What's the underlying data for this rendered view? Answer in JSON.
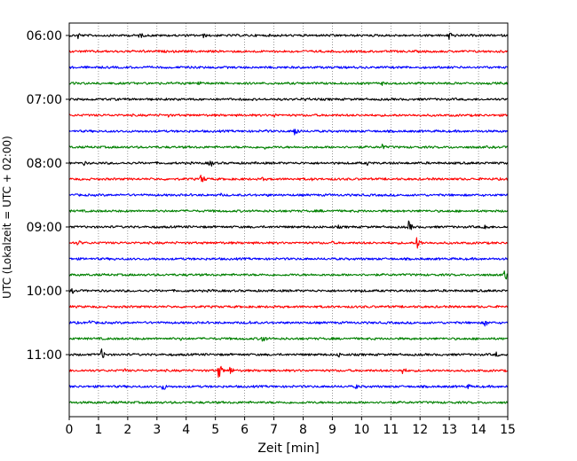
{
  "chart_data": {
    "type": "line",
    "subtype": "helicorder-seismogram",
    "xlabel": "Zeit  [min]",
    "ylabel": "UTC (Lokalzeit = UTC + 02:00)",
    "xlim": [
      0,
      15
    ],
    "x_ticks": [
      "0",
      "1",
      "2",
      "3",
      "4",
      "5",
      "6",
      "7",
      "8",
      "9",
      "10",
      "11",
      "12",
      "13",
      "14",
      "15"
    ],
    "y_ticks": [
      "06:00",
      "07:00",
      "08:00",
      "09:00",
      "10:00",
      "11:00"
    ],
    "grid": "vertical-dotted",
    "trace_colors": [
      "#000000",
      "#ff0000",
      "#0000ff",
      "#008000"
    ],
    "trace_interval_minutes": 15,
    "traces": [
      {
        "start": "06:00",
        "events": [
          [
            0.3,
            0.6
          ],
          [
            2.4,
            0.6
          ],
          [
            4.6,
            0.4
          ],
          [
            9.1,
            0.35
          ],
          [
            13.0,
            0.95
          ]
        ]
      },
      {
        "start": "06:15",
        "events": [
          [
            2.5,
            0.3
          ],
          [
            7.5,
            0.3
          ]
        ]
      },
      {
        "start": "06:30",
        "events": [
          [
            4.3,
            0.5
          ],
          [
            11.5,
            0.25
          ]
        ]
      },
      {
        "start": "06:45",
        "events": [
          [
            4.4,
            0.55
          ],
          [
            10.7,
            0.35
          ]
        ]
      },
      {
        "start": "07:00",
        "events": [
          [
            8.1,
            0.55
          ],
          [
            10.2,
            0.25
          ]
        ]
      },
      {
        "start": "07:15",
        "events": [
          [
            3.4,
            0.3
          ],
          [
            7.0,
            0.45
          ]
        ]
      },
      {
        "start": "07:30",
        "events": [
          [
            6.7,
            0.3
          ],
          [
            7.7,
            0.9
          ]
        ]
      },
      {
        "start": "07:45",
        "events": [
          [
            6.7,
            0.35
          ],
          [
            10.7,
            0.55
          ]
        ]
      },
      {
        "start": "08:00",
        "events": [
          [
            0.5,
            0.4
          ],
          [
            4.8,
            0.8
          ],
          [
            10.2,
            0.4
          ]
        ]
      },
      {
        "start": "08:15",
        "events": [
          [
            4.5,
            0.95
          ],
          [
            6.6,
            0.35
          ],
          [
            8.3,
            0.3
          ]
        ]
      },
      {
        "start": "08:30",
        "events": [
          [
            5.2,
            0.3
          ],
          [
            6.8,
            0.25
          ]
        ]
      },
      {
        "start": "08:45",
        "events": [
          [
            0.2,
            0.2
          ],
          [
            8.6,
            0.25
          ]
        ]
      },
      {
        "start": "09:00",
        "events": [
          [
            3.0,
            0.25
          ],
          [
            9.2,
            0.3
          ],
          [
            11.6,
            0.95
          ],
          [
            14.2,
            0.8
          ]
        ]
      },
      {
        "start": "09:15",
        "events": [
          [
            0.3,
            0.55
          ],
          [
            5.2,
            0.3
          ],
          [
            9.0,
            0.3
          ],
          [
            11.9,
            1.05
          ]
        ]
      },
      {
        "start": "09:30",
        "events": [
          [
            1.5,
            0.35
          ],
          [
            2.9,
            0.3
          ]
        ]
      },
      {
        "start": "09:45",
        "events": [
          [
            4.0,
            0.25
          ],
          [
            14.9,
            0.95
          ]
        ]
      },
      {
        "start": "10:00",
        "events": [
          [
            0.1,
            0.45
          ],
          [
            4.9,
            0.3
          ],
          [
            10.0,
            0.3
          ]
        ]
      },
      {
        "start": "10:15",
        "events": [
          [
            7.0,
            0.25
          ]
        ]
      },
      {
        "start": "10:30",
        "events": [
          [
            0.7,
            0.5
          ],
          [
            6.2,
            0.35
          ],
          [
            14.2,
            0.75
          ]
        ]
      },
      {
        "start": "10:45",
        "events": [
          [
            3.8,
            0.3
          ],
          [
            6.6,
            0.75
          ]
        ]
      },
      {
        "start": "11:00",
        "events": [
          [
            1.1,
            0.85
          ],
          [
            9.2,
            0.5
          ],
          [
            14.6,
            0.45
          ]
        ]
      },
      {
        "start": "11:15",
        "events": [
          [
            1.9,
            0.35
          ],
          [
            5.1,
            1.3
          ],
          [
            5.5,
            0.7
          ],
          [
            11.4,
            0.7
          ]
        ]
      },
      {
        "start": "11:30",
        "events": [
          [
            3.2,
            0.7
          ],
          [
            9.8,
            0.45
          ],
          [
            13.6,
            0.6
          ]
        ]
      },
      {
        "start": "11:45",
        "events": [
          [
            1.5,
            0.2
          ],
          [
            8.0,
            0.2
          ]
        ]
      }
    ]
  }
}
